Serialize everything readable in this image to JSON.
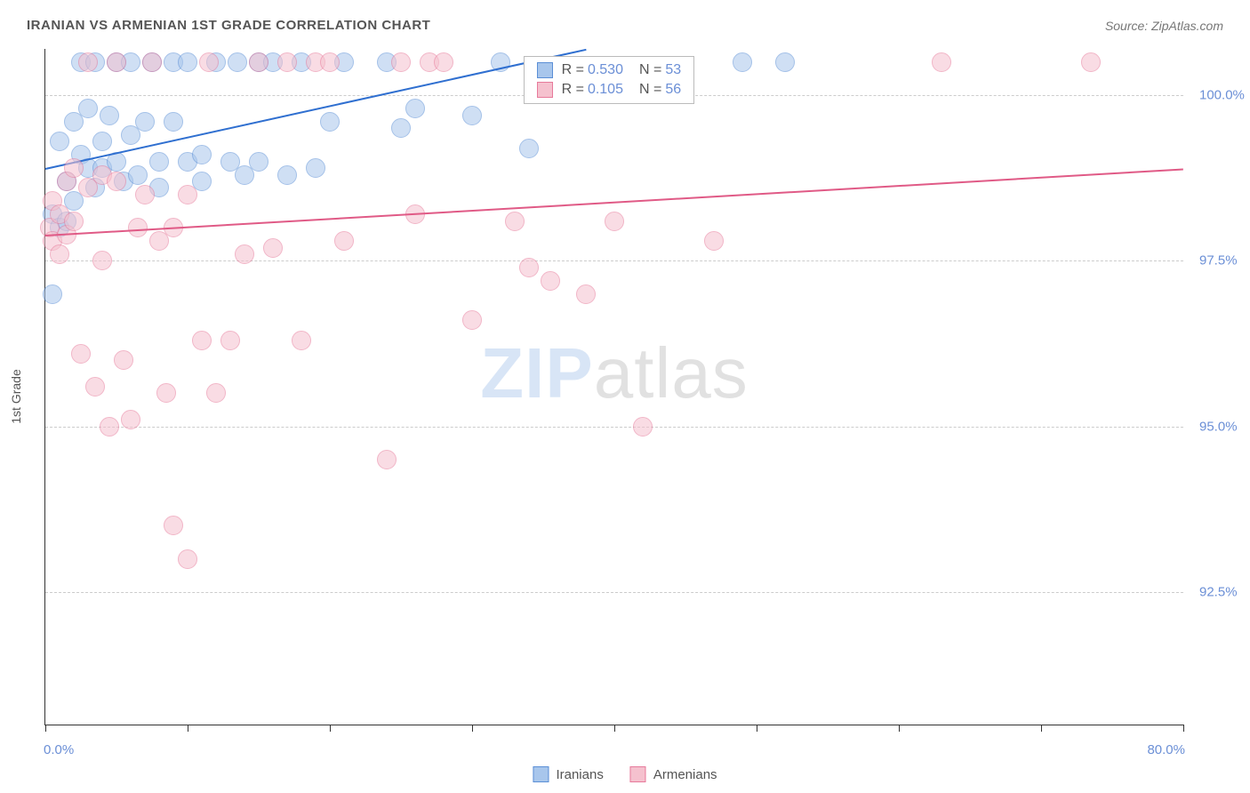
{
  "header": {
    "title": "IRANIAN VS ARMENIAN 1ST GRADE CORRELATION CHART",
    "source": "Source: ZipAtlas.com"
  },
  "chart": {
    "type": "scatter",
    "y_axis_label": "1st Grade",
    "xlim": [
      0,
      80
    ],
    "ylim": [
      90.5,
      100.7
    ],
    "x_end_labels": {
      "min": "0.0%",
      "max": "80.0%"
    },
    "y_ticks": [
      {
        "v": 92.5,
        "label": "92.5%"
      },
      {
        "v": 95.0,
        "label": "95.0%"
      },
      {
        "v": 97.5,
        "label": "97.5%"
      },
      {
        "v": 100.0,
        "label": "100.0%"
      }
    ],
    "x_ticks_at": [
      0,
      10,
      20,
      30,
      40,
      50,
      60,
      70,
      80
    ],
    "background_color": "#ffffff",
    "grid_color": "#cccccc",
    "axis_color": "#333333",
    "tick_label_color": "#6b8fd6",
    "label_fontsize": 14,
    "tick_fontsize": 15,
    "marker_radius": 10,
    "marker_opacity": 0.55,
    "watermark": {
      "prefix": "ZIP",
      "suffix": "atlas",
      "prefix_color": "rgba(100,150,220,0.25)",
      "suffix_color": "rgba(120,120,120,0.22)",
      "fontsize": 80
    },
    "series": [
      {
        "name": "Iranians",
        "color_fill": "#a8c6ec",
        "color_stroke": "#5b8fd6",
        "trend_color": "#2f6fd0",
        "R": "0.530",
        "N": "53",
        "trend": {
          "x1": 0,
          "y1": 98.9,
          "x2": 38,
          "y2": 100.7
        },
        "points": [
          [
            0.5,
            98.2
          ],
          [
            0.5,
            97.0
          ],
          [
            1.0,
            98.0
          ],
          [
            1.0,
            99.3
          ],
          [
            1.5,
            98.1
          ],
          [
            1.5,
            98.7
          ],
          [
            2.0,
            99.6
          ],
          [
            2.0,
            98.4
          ],
          [
            2.5,
            100.5
          ],
          [
            2.5,
            99.1
          ],
          [
            3.0,
            98.9
          ],
          [
            3.0,
            99.8
          ],
          [
            3.5,
            100.5
          ],
          [
            3.5,
            98.6
          ],
          [
            4.0,
            99.3
          ],
          [
            4.0,
            98.9
          ],
          [
            4.5,
            99.7
          ],
          [
            5.0,
            100.5
          ],
          [
            5.0,
            99.0
          ],
          [
            5.5,
            98.7
          ],
          [
            6.0,
            99.4
          ],
          [
            6.0,
            100.5
          ],
          [
            6.5,
            98.8
          ],
          [
            7.0,
            99.6
          ],
          [
            7.5,
            100.5
          ],
          [
            8.0,
            99.0
          ],
          [
            8.0,
            98.6
          ],
          [
            9.0,
            99.6
          ],
          [
            9.0,
            100.5
          ],
          [
            10.0,
            99.0
          ],
          [
            10.0,
            100.5
          ],
          [
            11.0,
            99.1
          ],
          [
            11.0,
            98.7
          ],
          [
            12.0,
            100.5
          ],
          [
            13.0,
            99.0
          ],
          [
            13.5,
            100.5
          ],
          [
            14.0,
            98.8
          ],
          [
            15.0,
            99.0
          ],
          [
            15.0,
            100.5
          ],
          [
            16.0,
            100.5
          ],
          [
            17.0,
            98.8
          ],
          [
            18.0,
            100.5
          ],
          [
            19.0,
            98.9
          ],
          [
            20.0,
            99.6
          ],
          [
            21.0,
            100.5
          ],
          [
            24.0,
            100.5
          ],
          [
            25.0,
            99.5
          ],
          [
            26.0,
            99.8
          ],
          [
            30.0,
            99.7
          ],
          [
            32.0,
            100.5
          ],
          [
            34.0,
            99.2
          ],
          [
            49.0,
            100.5
          ],
          [
            52.0,
            100.5
          ]
        ]
      },
      {
        "name": "Armenians",
        "color_fill": "#f5c1ce",
        "color_stroke": "#e77a9b",
        "trend_color": "#e05a86",
        "R": "0.105",
        "N": "56",
        "trend": {
          "x1": 0,
          "y1": 97.9,
          "x2": 80,
          "y2": 98.9
        },
        "points": [
          [
            0.3,
            98.0
          ],
          [
            0.5,
            97.8
          ],
          [
            0.5,
            98.4
          ],
          [
            1.0,
            98.2
          ],
          [
            1.0,
            97.6
          ],
          [
            1.5,
            98.7
          ],
          [
            1.5,
            97.9
          ],
          [
            2.0,
            98.1
          ],
          [
            2.0,
            98.9
          ],
          [
            2.5,
            96.1
          ],
          [
            3.0,
            98.6
          ],
          [
            3.0,
            100.5
          ],
          [
            3.5,
            95.6
          ],
          [
            4.0,
            98.8
          ],
          [
            4.0,
            97.5
          ],
          [
            4.5,
            95.0
          ],
          [
            5.0,
            98.7
          ],
          [
            5.0,
            100.5
          ],
          [
            5.5,
            96.0
          ],
          [
            6.0,
            95.1
          ],
          [
            6.5,
            98.0
          ],
          [
            7.0,
            98.5
          ],
          [
            7.5,
            100.5
          ],
          [
            8.0,
            97.8
          ],
          [
            8.5,
            95.5
          ],
          [
            9.0,
            98.0
          ],
          [
            9.0,
            93.5
          ],
          [
            10.0,
            98.5
          ],
          [
            10.0,
            93.0
          ],
          [
            11.0,
            96.3
          ],
          [
            11.5,
            100.5
          ],
          [
            12.0,
            95.5
          ],
          [
            13.0,
            96.3
          ],
          [
            14.0,
            97.6
          ],
          [
            15.0,
            100.5
          ],
          [
            16.0,
            97.7
          ],
          [
            17.0,
            100.5
          ],
          [
            18.0,
            96.3
          ],
          [
            19.0,
            100.5
          ],
          [
            20.0,
            100.5
          ],
          [
            21.0,
            97.8
          ],
          [
            24.0,
            94.5
          ],
          [
            25.0,
            100.5
          ],
          [
            26.0,
            98.2
          ],
          [
            27.0,
            100.5
          ],
          [
            28.0,
            100.5
          ],
          [
            30.0,
            96.6
          ],
          [
            33.0,
            98.1
          ],
          [
            34.0,
            97.4
          ],
          [
            35.5,
            97.2
          ],
          [
            38.0,
            97.0
          ],
          [
            40.0,
            98.1
          ],
          [
            42.0,
            95.0
          ],
          [
            47.0,
            97.8
          ],
          [
            63.0,
            100.5
          ],
          [
            73.5,
            100.5
          ]
        ]
      }
    ],
    "stats_box": {
      "left_pct": 42,
      "top_pct": 1
    },
    "bottom_legend_labels": [
      "Iranians",
      "Armenians"
    ]
  }
}
